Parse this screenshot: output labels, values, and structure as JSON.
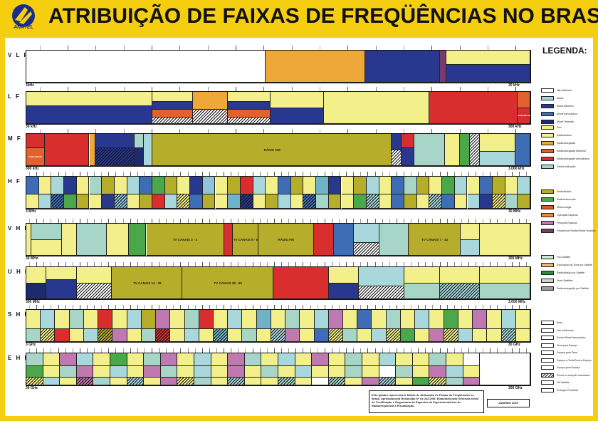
{
  "header": {
    "title": "ATRIBUIÇÃO DE FAIXAS DE FREQÜÊNCIAS NO BRASIL",
    "logo_text": "ANATEL"
  },
  "legend": {
    "title": "LEGENDA:",
    "items": [
      {
        "text": "Não Atribuído",
        "color": "#ffffff",
        "hatch": false
      },
      {
        "text": "Móvel",
        "color": "#a8d8dc",
        "hatch": false
      },
      {
        "text": "Móvel Marítimo",
        "color": "#28388f",
        "hatch": false
      },
      {
        "text": "Móvel Aeronáutico",
        "color": "#3e6db5",
        "hatch": false
      },
      {
        "text": "Móvel Terrestre",
        "color": "#1e2a6e",
        "hatch": false
      },
      {
        "text": "Fixo",
        "color": "#f3ef8a",
        "hatch": false
      },
      {
        "text": "Radioamador",
        "color": "#f4f09c",
        "hatch": false
      },
      {
        "text": "Radionavegação",
        "color": "#eea83a",
        "hatch": false
      },
      {
        "text": "Radionavegação Marítima",
        "color": "#e2622f",
        "hatch": false
      },
      {
        "text": "Radionavegação Aeronáutica",
        "color": "#d82e2e",
        "hatch": false
      },
      {
        "text": "Radiolocalização",
        "color": "#a7d6c9",
        "hatch": false
      },
      {
        "text": "Radiodifusão",
        "color": "#b6ad2a",
        "hatch": false
      },
      {
        "text": "Radioastronomia",
        "color": "#4aa84a",
        "hatch": false
      },
      {
        "text": "Meteorologia",
        "color": "#e05438",
        "hatch": false
      },
      {
        "text": "Operação Espacial",
        "color": "#f08a3a",
        "hatch": false
      },
      {
        "text": "Pesquisa Espacial",
        "color": "#c078b0",
        "hatch": false
      },
      {
        "text": "Freqüência Padrão/Sinais Horários",
        "color": "#7a3a6a",
        "hatch": false
      },
      {
        "text": "Fixo Satélite",
        "color": "#cfe8d4",
        "hatch": false
      },
      {
        "text": "Exploração da Terra por Satélite",
        "color": "#e7b67a",
        "hatch": false
      },
      {
        "text": "Radiodifusão por Satélite",
        "color": "#2f8a3a",
        "hatch": false
      },
      {
        "text": "Entre Satélites",
        "color": "#d2d2d2",
        "hatch": false
      },
      {
        "text": "Radionavegação por Satélite",
        "color": "#9a9a9a",
        "hatch": false
      },
      {
        "text": "Base",
        "color": "#ffffff",
        "hatch": false
      },
      {
        "text": "Uso Indiferente",
        "color": "#ffffff",
        "hatch": false
      },
      {
        "text": "Exceto Móvel Aeronáutico",
        "color": "#ffffff",
        "hatch": false
      },
      {
        "text": "Terra-para-Espaço",
        "color": "#ffffff",
        "hatch": false
      },
      {
        "text": "Espaço-para-Terra",
        "color": "#ffffff",
        "hatch": false
      },
      {
        "text": "Espaço-a-Terra/Terra-a-Espaço",
        "color": "#ffffff",
        "hatch": false
      },
      {
        "text": "Espaço-para-Espaço",
        "color": "#ffffff",
        "hatch": false
      },
      {
        "text": "Exceto a recepção autorizada",
        "color": "#ffffff",
        "hatch": true
      },
      {
        "text": "Via Satélite",
        "color": "#ffffff",
        "hatch": false
      },
      {
        "text": "Proteção Prioritária",
        "color": "#ffffff",
        "hatch": false
      }
    ]
  },
  "bands": [
    {
      "name": "V L F",
      "start": "3kHz",
      "end": "30 kHz"
    },
    {
      "name": "L F",
      "start": "30 kHz",
      "end": "300 kHz"
    },
    {
      "name": "M F",
      "start": "300 kHz",
      "end": "3.000 kHz"
    },
    {
      "name": "H F",
      "start": "3 MHz",
      "end": "30 MHz"
    },
    {
      "name": "V H F",
      "start": "30 MHz",
      "end": "300 MHz"
    },
    {
      "name": "U H F",
      "start": "300 MHz",
      "end": "3.000 MHz"
    },
    {
      "name": "S H F",
      "start": "3 GHz",
      "end": "30 GHz"
    },
    {
      "name": "E H F",
      "start": "30 GHz",
      "end": "300 GHz"
    }
  ],
  "band_labels": {
    "mf_radio": "RÁDIO OM",
    "vhf_tv1": "TV CANAIS 2 - 4",
    "vhf_tv2": "TV CANAIS 5 - 6",
    "vhf_fm": "RÁDIO FM",
    "vhf_tv3": "TV CANAIS 7 - 13",
    "uhf_tv1": "TV CANAIS 14 - 36",
    "uhf_tv2": "TV CANAIS 38 - 69",
    "lf_radio": "Radiodifusão",
    "mf_radio2": "Radiodifusão"
  },
  "note": {
    "text": "Este quadro representa a Tabela de Atribuição de Faixas de Freqüências no Brasil, aprovada pela Resolução Nº de 24/12/98. Elaborado pela Gerência Geral de Certificação e Engenharia do Espectro da Superintendência de Radiofreqüência e Fiscalização.",
    "date": "JANEIRO 2000"
  }
}
